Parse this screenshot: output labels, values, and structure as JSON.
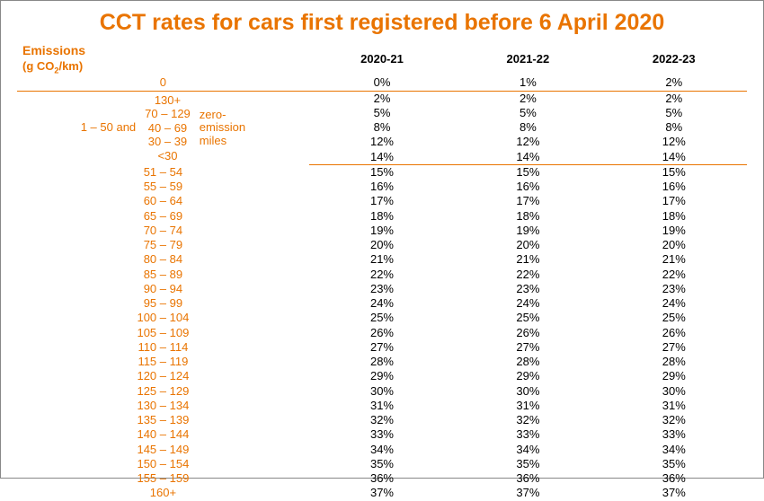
{
  "title": "CCT rates for cars first registered before 6 April 2020",
  "accent_color": "#e97400",
  "header": {
    "emissions_line1": "Emissions",
    "emissions_line2_html": "(g CO<sub>2</sub>/km)",
    "years": [
      "2020-21",
      "2021-22",
      "2022-23"
    ]
  },
  "row_zero": {
    "label": "0",
    "values": [
      "0%",
      "1%",
      "2%"
    ]
  },
  "block_1_50": {
    "left_text": "1 – 50  and",
    "ranges": [
      "130+",
      "70 – 129",
      "40 – 69",
      "30 – 39",
      "<30"
    ],
    "zero_emission_label": "zero-\nemission\nmiles",
    "rows": [
      [
        "2%",
        "2%",
        "2%"
      ],
      [
        "5%",
        "5%",
        "5%"
      ],
      [
        "8%",
        "8%",
        "8%"
      ],
      [
        "12%",
        "12%",
        "12%"
      ],
      [
        "14%",
        "14%",
        "14%"
      ]
    ]
  },
  "rows_rest": [
    {
      "label": "51 – 54",
      "values": [
        "15%",
        "15%",
        "15%"
      ]
    },
    {
      "label": "55 – 59",
      "values": [
        "16%",
        "16%",
        "16%"
      ]
    },
    {
      "label": "60 – 64",
      "values": [
        "17%",
        "17%",
        "17%"
      ]
    },
    {
      "label": "65 – 69",
      "values": [
        "18%",
        "18%",
        "18%"
      ]
    },
    {
      "label": "70 – 74",
      "values": [
        "19%",
        "19%",
        "19%"
      ]
    },
    {
      "label": "75 – 79",
      "values": [
        "20%",
        "20%",
        "20%"
      ]
    },
    {
      "label": "80 – 84",
      "values": [
        "21%",
        "21%",
        "21%"
      ]
    },
    {
      "label": "85 – 89",
      "values": [
        "22%",
        "22%",
        "22%"
      ]
    },
    {
      "label": "90 – 94",
      "values": [
        "23%",
        "23%",
        "23%"
      ]
    },
    {
      "label": "95 – 99",
      "values": [
        "24%",
        "24%",
        "24%"
      ]
    },
    {
      "label": "100 – 104",
      "values": [
        "25%",
        "25%",
        "25%"
      ]
    },
    {
      "label": "105 – 109",
      "values": [
        "26%",
        "26%",
        "26%"
      ]
    },
    {
      "label": "110 – 114",
      "values": [
        "27%",
        "27%",
        "27%"
      ]
    },
    {
      "label": "115 – 119",
      "values": [
        "28%",
        "28%",
        "28%"
      ]
    },
    {
      "label": "120 – 124",
      "values": [
        "29%",
        "29%",
        "29%"
      ]
    },
    {
      "label": "125 – 129",
      "values": [
        "30%",
        "30%",
        "30%"
      ]
    },
    {
      "label": "130 – 134",
      "values": [
        "31%",
        "31%",
        "31%"
      ]
    },
    {
      "label": "135 – 139",
      "values": [
        "32%",
        "32%",
        "32%"
      ]
    },
    {
      "label": "140 – 144",
      "values": [
        "33%",
        "33%",
        "33%"
      ]
    },
    {
      "label": "145 – 149",
      "values": [
        "34%",
        "34%",
        "34%"
      ]
    },
    {
      "label": "150 – 154",
      "values": [
        "35%",
        "35%",
        "35%"
      ]
    },
    {
      "label": "155 – 159",
      "values": [
        "36%",
        "36%",
        "36%"
      ]
    },
    {
      "label": "160+",
      "values": [
        "37%",
        "37%",
        "37%"
      ]
    }
  ]
}
